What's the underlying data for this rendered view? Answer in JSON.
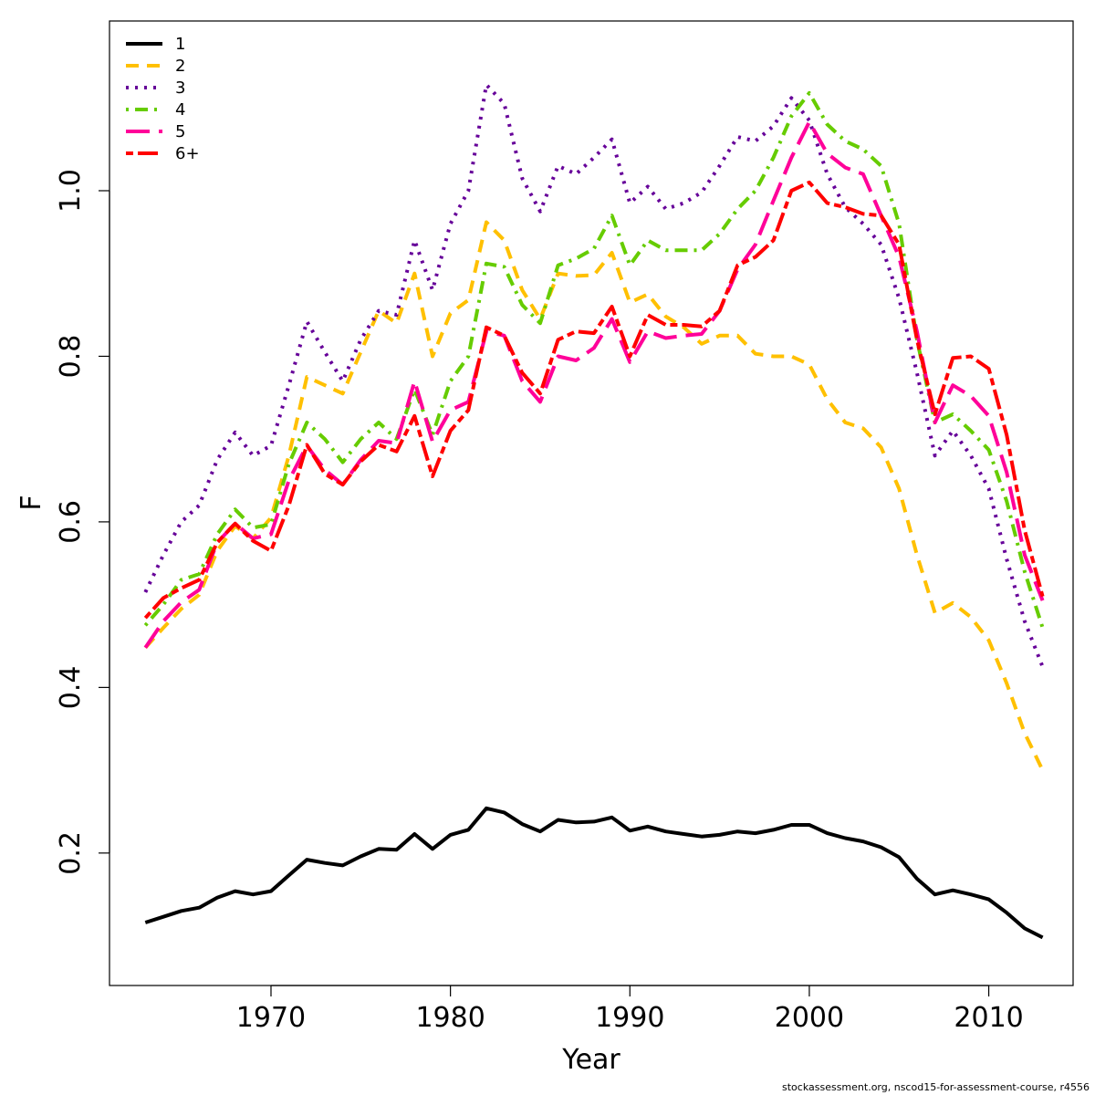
{
  "chart_data": {
    "type": "line",
    "title": "",
    "xlabel": "Year",
    "ylabel": "F",
    "xlim": [
      1961.0,
      2014.7
    ],
    "ylim": [
      0.04,
      1.205
    ],
    "x_ticks": [
      1970,
      1980,
      1990,
      2000,
      2010
    ],
    "y_ticks": [
      0.2,
      0.4,
      0.6,
      0.8,
      1.0
    ],
    "x_tick_labels": [
      "1970",
      "1980",
      "1990",
      "2000",
      "2010"
    ],
    "y_tick_labels": [
      "0.2",
      "0.4",
      "0.6",
      "0.8",
      "1.0"
    ],
    "grid": false,
    "legend_position": "top-left",
    "x": [
      1963,
      1964,
      1965,
      1966,
      1967,
      1968,
      1969,
      1970,
      1971,
      1972,
      1973,
      1974,
      1975,
      1976,
      1977,
      1978,
      1979,
      1980,
      1981,
      1982,
      1983,
      1984,
      1985,
      1986,
      1987,
      1988,
      1989,
      1990,
      1991,
      1992,
      1993,
      1994,
      1995,
      1996,
      1997,
      1998,
      1999,
      2000,
      2001,
      2002,
      2003,
      2004,
      2005,
      2006,
      2007,
      2008,
      2009,
      2010,
      2011,
      2012,
      2013
    ],
    "series": [
      {
        "name": "1",
        "color": "#000000",
        "dash": "solid",
        "values": [
          0.116,
          0.123,
          0.13,
          0.134,
          0.146,
          0.154,
          0.15,
          0.154,
          0.173,
          0.192,
          0.188,
          0.185,
          0.196,
          0.205,
          0.204,
          0.223,
          0.205,
          0.222,
          0.228,
          0.254,
          0.249,
          0.235,
          0.226,
          0.24,
          0.237,
          0.238,
          0.243,
          0.227,
          0.232,
          0.226,
          0.223,
          0.22,
          0.222,
          0.226,
          0.224,
          0.228,
          0.234,
          0.234,
          0.224,
          0.218,
          0.214,
          0.207,
          0.195,
          0.169,
          0.15,
          0.155,
          0.15,
          0.144,
          0.128,
          0.109,
          0.098
        ]
      },
      {
        "name": "2",
        "color": "#FFC000",
        "dash": "dashed",
        "values": [
          0.448,
          0.472,
          0.495,
          0.512,
          0.565,
          0.595,
          0.58,
          0.605,
          0.68,
          0.775,
          0.765,
          0.755,
          0.805,
          0.855,
          0.84,
          0.9,
          0.8,
          0.852,
          0.868,
          0.962,
          0.94,
          0.88,
          0.845,
          0.9,
          0.897,
          0.898,
          0.925,
          0.865,
          0.875,
          0.848,
          0.835,
          0.815,
          0.825,
          0.825,
          0.803,
          0.8,
          0.8,
          0.79,
          0.748,
          0.72,
          0.713,
          0.69,
          0.64,
          0.56,
          0.49,
          0.502,
          0.485,
          0.457,
          0.405,
          0.345,
          0.3
        ]
      },
      {
        "name": "3",
        "color": "#660099",
        "dash": "dotted",
        "values": [
          0.515,
          0.56,
          0.6,
          0.62,
          0.675,
          0.708,
          0.68,
          0.692,
          0.765,
          0.842,
          0.805,
          0.77,
          0.82,
          0.855,
          0.85,
          0.94,
          0.88,
          0.96,
          1.0,
          1.128,
          1.105,
          1.015,
          0.975,
          1.03,
          1.02,
          1.04,
          1.062,
          0.985,
          1.005,
          0.978,
          0.985,
          0.998,
          1.03,
          1.065,
          1.06,
          1.078,
          1.112,
          1.085,
          1.02,
          0.98,
          0.96,
          0.935,
          0.87,
          0.78,
          0.68,
          0.71,
          0.68,
          0.64,
          0.555,
          0.48,
          0.425
        ]
      },
      {
        "name": "4",
        "color": "#66CC00",
        "dash": "dotdash",
        "values": [
          0.475,
          0.5,
          0.53,
          0.537,
          0.585,
          0.615,
          0.593,
          0.597,
          0.67,
          0.72,
          0.7,
          0.672,
          0.7,
          0.72,
          0.7,
          0.76,
          0.705,
          0.77,
          0.8,
          0.912,
          0.908,
          0.862,
          0.84,
          0.91,
          0.918,
          0.93,
          0.97,
          0.91,
          0.94,
          0.928,
          0.928,
          0.928,
          0.948,
          0.978,
          1.0,
          1.04,
          1.09,
          1.118,
          1.08,
          1.06,
          1.05,
          1.03,
          0.96,
          0.82,
          0.72,
          0.73,
          0.71,
          0.687,
          0.625,
          0.54,
          0.472
        ]
      },
      {
        "name": "5",
        "color": "#FF0099",
        "dash": "longdash",
        "values": [
          0.448,
          0.48,
          0.503,
          0.518,
          0.575,
          0.598,
          0.58,
          0.585,
          0.65,
          0.692,
          0.663,
          0.645,
          0.675,
          0.698,
          0.695,
          0.77,
          0.697,
          0.735,
          0.745,
          0.83,
          0.825,
          0.77,
          0.745,
          0.8,
          0.795,
          0.81,
          0.845,
          0.793,
          0.83,
          0.822,
          0.825,
          0.827,
          0.855,
          0.905,
          0.935,
          0.988,
          1.04,
          1.083,
          1.045,
          1.028,
          1.02,
          0.97,
          0.92,
          0.83,
          0.72,
          0.765,
          0.752,
          0.728,
          0.66,
          0.56,
          0.505
        ]
      },
      {
        "name": "6+",
        "color": "#FF0000",
        "dash": "twodash",
        "values": [
          0.484,
          0.508,
          0.52,
          0.53,
          0.575,
          0.598,
          0.577,
          0.565,
          0.62,
          0.693,
          0.658,
          0.645,
          0.673,
          0.693,
          0.685,
          0.728,
          0.655,
          0.71,
          0.735,
          0.835,
          0.825,
          0.78,
          0.755,
          0.82,
          0.83,
          0.828,
          0.86,
          0.8,
          0.85,
          0.838,
          0.838,
          0.836,
          0.855,
          0.91,
          0.92,
          0.94,
          1.0,
          1.01,
          0.985,
          0.98,
          0.972,
          0.97,
          0.935,
          0.82,
          0.73,
          0.798,
          0.8,
          0.785,
          0.705,
          0.59,
          0.51
        ]
      }
    ]
  },
  "footnote": "stockassessment.org, nscod15-for-assessment-course, r4556"
}
